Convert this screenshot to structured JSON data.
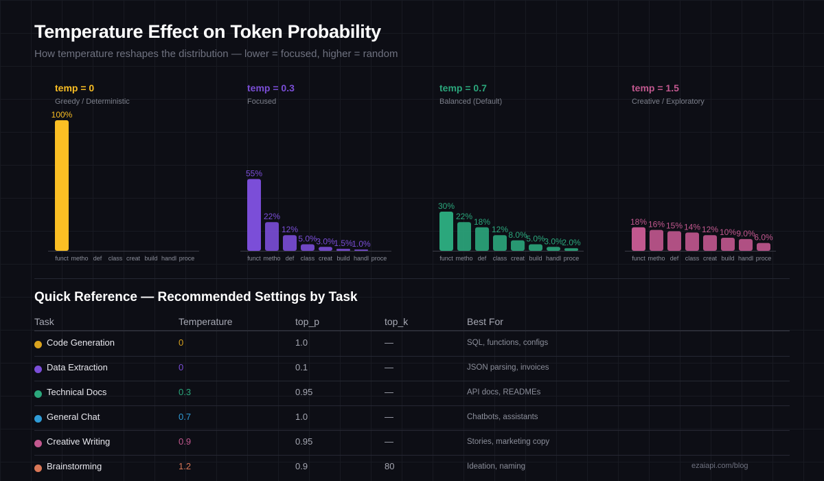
{
  "header": {
    "title": "Temperature Effect on Token Probability",
    "subtitle": "How temperature reshapes the distribution — lower = focused, higher = random"
  },
  "chart_data": [
    {
      "type": "bar",
      "title": "temp = 0",
      "subtitle": "Greedy / Deterministic",
      "color": "#fbbf24",
      "categories": [
        "funct",
        "metho",
        "def",
        "class",
        "creat",
        "build",
        "handl",
        "proce"
      ],
      "values": [
        100,
        0,
        0,
        0,
        0,
        0,
        0,
        0
      ],
      "labels": [
        "100%",
        "",
        "",
        "",
        "",
        "",
        "",
        ""
      ],
      "ylim": [
        0,
        100
      ]
    },
    {
      "type": "bar",
      "title": "temp = 0.3",
      "subtitle": "Focused",
      "color": "#7b4ed8",
      "categories": [
        "funct",
        "metho",
        "def",
        "class",
        "creat",
        "build",
        "handl",
        "proce"
      ],
      "values": [
        55,
        22,
        12,
        5,
        3,
        1.5,
        1,
        0
      ],
      "labels": [
        "55%",
        "22%",
        "12%",
        "5.0%",
        "3.0%",
        "1.5%",
        "1.0%",
        ""
      ],
      "ylim": [
        0,
        100
      ]
    },
    {
      "type": "bar",
      "title": "temp = 0.7",
      "subtitle": "Balanced (Default)",
      "color": "#2ba77c",
      "categories": [
        "funct",
        "metho",
        "def",
        "class",
        "creat",
        "build",
        "handl",
        "proce"
      ],
      "values": [
        30,
        22,
        18,
        12,
        8,
        5,
        3,
        2
      ],
      "labels": [
        "30%",
        "22%",
        "18%",
        "12%",
        "8.0%",
        "5.0%",
        "3.0%",
        "2.0%"
      ],
      "ylim": [
        0,
        100
      ]
    },
    {
      "type": "bar",
      "title": "temp = 1.5",
      "subtitle": "Creative / Exploratory",
      "color": "#c2588f",
      "categories": [
        "funct",
        "metho",
        "def",
        "class",
        "creat",
        "build",
        "handl",
        "proce"
      ],
      "values": [
        18,
        16,
        15,
        14,
        12,
        10,
        9,
        6
      ],
      "labels": [
        "18%",
        "16%",
        "15%",
        "14%",
        "12%",
        "10%",
        "9.0%",
        "6.0%"
      ],
      "ylim": [
        0,
        100
      ]
    }
  ],
  "reference": {
    "heading": "Quick Reference — Recommended Settings by Task",
    "columns": [
      "Task",
      "Temperature",
      "top_p",
      "top_k",
      "Best For"
    ],
    "rows": [
      {
        "task": "Code Generation",
        "temperature": "0",
        "top_p": "1.0",
        "top_k": "—",
        "best_for": "SQL, functions, configs",
        "color": "#d9a21e"
      },
      {
        "task": "Data Extraction",
        "temperature": "0",
        "top_p": "0.1",
        "top_k": "—",
        "best_for": "JSON parsing, invoices",
        "color": "#7b4ed8"
      },
      {
        "task": "Technical Docs",
        "temperature": "0.3",
        "top_p": "0.95",
        "top_k": "—",
        "best_for": "API docs, READMEs",
        "color": "#2ba77c"
      },
      {
        "task": "General Chat",
        "temperature": "0.7",
        "top_p": "1.0",
        "top_k": "—",
        "best_for": "Chatbots, assistants",
        "color": "#2f9bd6"
      },
      {
        "task": "Creative Writing",
        "temperature": "0.9",
        "top_p": "0.95",
        "top_k": "—",
        "best_for": "Stories, marketing copy",
        "color": "#c2588f"
      },
      {
        "task": "Brainstorming",
        "temperature": "1.2",
        "top_p": "0.9",
        "top_k": "80",
        "best_for": "Ideation, naming",
        "color": "#d97757"
      }
    ]
  },
  "footer": "ezaiapi.com/blog"
}
